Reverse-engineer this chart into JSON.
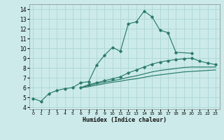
{
  "xlabel": "Humidex (Indice chaleur)",
  "xlim": [
    -0.5,
    23.5
  ],
  "ylim": [
    3.8,
    14.5
  ],
  "xticks": [
    0,
    1,
    2,
    3,
    4,
    5,
    6,
    7,
    8,
    9,
    10,
    11,
    12,
    13,
    14,
    15,
    16,
    17,
    18,
    19,
    20,
    21,
    22,
    23
  ],
  "yticks": [
    4,
    5,
    6,
    7,
    8,
    9,
    10,
    11,
    12,
    13,
    14
  ],
  "bg_color": "#cceaea",
  "grid_color": "#b0d8d8",
  "line_color": "#2a7a6a",
  "line1_y": [
    4.9,
    4.6,
    5.4,
    5.7,
    5.9,
    6.0,
    6.5,
    6.6,
    8.3,
    9.3,
    10.1,
    9.7,
    12.5,
    12.7,
    13.8,
    13.2,
    11.85,
    11.6,
    9.6,
    null,
    9.5,
    null,
    null,
    null
  ],
  "line2_y": [
    null,
    null,
    null,
    null,
    null,
    null,
    6.0,
    6.3,
    6.5,
    6.7,
    6.9,
    7.1,
    7.5,
    7.8,
    8.1,
    8.4,
    8.6,
    8.75,
    8.85,
    8.95,
    9.0,
    8.7,
    8.5,
    8.35
  ],
  "line3_y": [
    null,
    null,
    null,
    null,
    null,
    null,
    6.0,
    6.2,
    6.4,
    6.55,
    6.7,
    6.85,
    7.05,
    7.2,
    7.4,
    7.6,
    7.75,
    7.85,
    7.95,
    8.05,
    8.1,
    8.1,
    8.1,
    8.1
  ],
  "line4_y": [
    null,
    null,
    null,
    null,
    null,
    null,
    6.0,
    6.1,
    6.25,
    6.4,
    6.55,
    6.65,
    6.8,
    6.9,
    7.05,
    7.2,
    7.3,
    7.4,
    7.5,
    7.6,
    7.65,
    7.7,
    7.75,
    7.8
  ]
}
